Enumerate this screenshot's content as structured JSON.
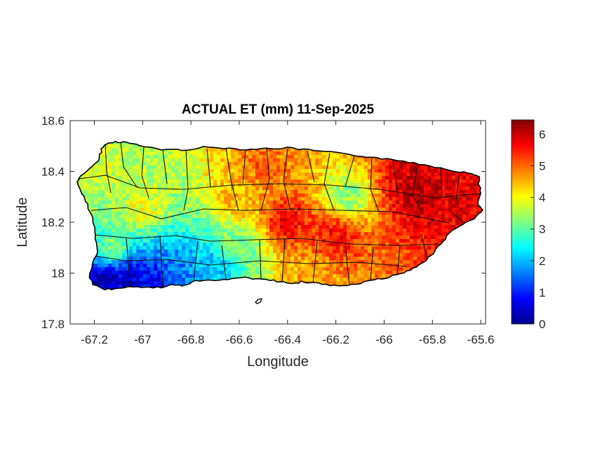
{
  "chart_data": {
    "type": "heatmap",
    "title": "ACTUAL ET (mm) 11-Sep-2025",
    "xlabel": "Longitude",
    "ylabel": "Latitude",
    "xlim": [
      -67.3,
      -65.58
    ],
    "ylim": [
      17.8,
      18.6
    ],
    "x_ticks": [
      -67.2,
      -67,
      -66.8,
      -66.6,
      -66.4,
      -66.2,
      -66,
      -65.8,
      -65.6
    ],
    "x_tick_labels": [
      "-67.2",
      "-67",
      "-66.8",
      "-66.6",
      "-66.4",
      "-66.2",
      "-66",
      "-65.8",
      "-65.6"
    ],
    "y_ticks": [
      17.8,
      18,
      18.2,
      18.4,
      18.6
    ],
    "y_tick_labels": [
      "17.8",
      "18",
      "18.2",
      "18.4",
      "18.6"
    ],
    "colorbar": {
      "colormap": "jet",
      "range": [
        0,
        6.45
      ],
      "ticks": [
        0,
        1,
        2,
        3,
        4,
        5,
        6
      ],
      "tick_labels": [
        "0",
        "1",
        "2",
        "3",
        "4",
        "5",
        "6"
      ]
    },
    "region": "Puerto Rico",
    "field_summary": [
      {
        "area": "southwest coast",
        "lon": -67.05,
        "lat": 17.98,
        "value": 0.5
      },
      {
        "area": "south-central coast",
        "lon": -66.7,
        "lat": 18.02,
        "value": 2.0
      },
      {
        "area": "west-central interior",
        "lon": -67.0,
        "lat": 18.25,
        "value": 4.0
      },
      {
        "area": "central interior",
        "lon": -66.6,
        "lat": 18.3,
        "value": 4.5
      },
      {
        "area": "north-central",
        "lon": -66.5,
        "lat": 18.42,
        "value": 5.0
      },
      {
        "area": "east-central",
        "lon": -66.2,
        "lat": 18.15,
        "value": 5.6
      },
      {
        "area": "central-northeast",
        "lon": -66.15,
        "lat": 18.3,
        "value": 3.3
      },
      {
        "area": "east",
        "lon": -65.85,
        "lat": 18.3,
        "value": 6.1
      }
    ]
  }
}
